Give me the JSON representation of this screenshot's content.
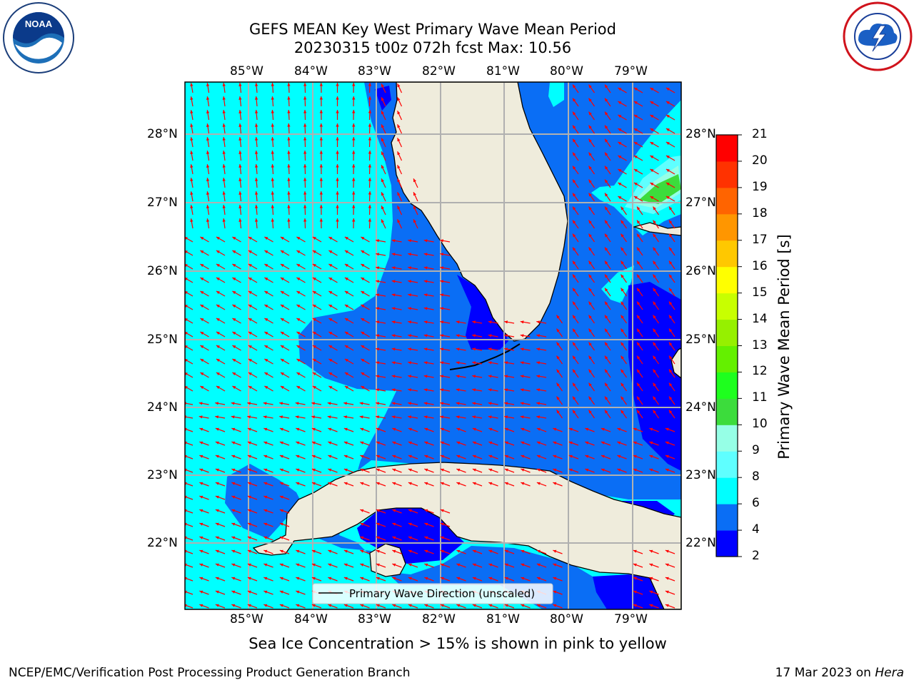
{
  "title": {
    "line1": "GEFS MEAN Key West Primary Wave Mean Period",
    "line2": "20230315 t00z 072h fcst   Max: 10.56"
  },
  "map": {
    "lon_labels": [
      "85°W",
      "84°W",
      "83°W",
      "82°W",
      "81°W",
      "80°W",
      "79°W"
    ],
    "lat_labels": [
      "28°N",
      "27°N",
      "26°N",
      "25°N",
      "24°N",
      "23°N",
      "22°N"
    ],
    "legend_label": "Primary Wave Direction (unscaled)",
    "land_color": "#efecdc",
    "arrow_color": "#ff0000",
    "grid": true
  },
  "colorbar": {
    "label": "Primary Wave Mean Period [s]",
    "ticks": [
      "2",
      "4",
      "6",
      "8",
      "9",
      "10",
      "11",
      "12",
      "13",
      "14",
      "15",
      "16",
      "17",
      "18",
      "19",
      "20",
      "21"
    ],
    "colors": [
      "#0000ff",
      "#0a6ef5",
      "#00ffff",
      "#5fffff",
      "#96ffe6",
      "#3cdc3c",
      "#1eff1e",
      "#64f000",
      "#96f000",
      "#c8ff00",
      "#ffff00",
      "#ffc800",
      "#ff9600",
      "#ff6400",
      "#ff3200",
      "#ff0000"
    ]
  },
  "sea_ice_note": "Sea Ice Concentration > 15% is shown in pink to yellow",
  "footer": {
    "left": "NCEP/EMC/Verification Post Processing Product Generation Branch",
    "date": "17 Mar 2023 on ",
    "machine": "Hera"
  },
  "logos": {
    "noaa_text": "NOAA",
    "nws_text": "NATIONAL WEATHER SERVICE"
  }
}
